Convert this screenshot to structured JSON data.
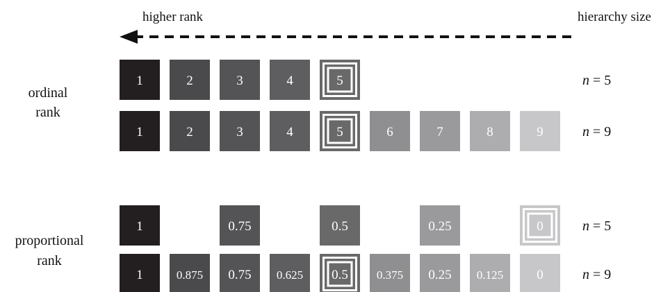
{
  "header": {
    "left_label": "higher rank",
    "right_label": "hierarchy size"
  },
  "sections": [
    {
      "label_lines": [
        "ordinal",
        "rank"
      ],
      "rows": [
        {
          "n_label": "n = 5",
          "cells": [
            {
              "slot": 1,
              "text": "1",
              "color": "#231f20"
            },
            {
              "slot": 2,
              "text": "2",
              "color": "#4a4a4c"
            },
            {
              "slot": 3,
              "text": "3",
              "color": "#545456"
            },
            {
              "slot": 4,
              "text": "4",
              "color": "#5e5e60"
            },
            {
              "slot": 5,
              "text": "5",
              "color": "#696969",
              "highlight": true
            }
          ]
        },
        {
          "n_label": "n = 9",
          "cells": [
            {
              "slot": 1,
              "text": "1",
              "color": "#231f20"
            },
            {
              "slot": 2,
              "text": "2",
              "color": "#4a4a4c"
            },
            {
              "slot": 3,
              "text": "3",
              "color": "#545456"
            },
            {
              "slot": 4,
              "text": "4",
              "color": "#5e5e60"
            },
            {
              "slot": 5,
              "text": "5",
              "color": "#696969",
              "highlight": true
            },
            {
              "slot": 6,
              "text": "6",
              "color": "#8f8f91"
            },
            {
              "slot": 7,
              "text": "7",
              "color": "#9a9a9c"
            },
            {
              "slot": 8,
              "text": "8",
              "color": "#adadaf"
            },
            {
              "slot": 9,
              "text": "9",
              "color": "#c7c7c9"
            }
          ]
        }
      ]
    },
    {
      "label_lines": [
        "proportional",
        "rank"
      ],
      "rows": [
        {
          "n_label": "n = 5",
          "cells": [
            {
              "slot": 1,
              "text": "1",
              "color": "#231f20"
            },
            {
              "slot": 3,
              "text": "0.75",
              "color": "#545456"
            },
            {
              "slot": 5,
              "text": "0.5",
              "color": "#696969"
            },
            {
              "slot": 7,
              "text": "0.25",
              "color": "#9a9a9c"
            },
            {
              "slot": 9,
              "text": "0",
              "color": "#c7c7c9",
              "highlight": true
            }
          ]
        },
        {
          "n_label": "n = 9",
          "cells": [
            {
              "slot": 1,
              "text": "1",
              "color": "#231f20"
            },
            {
              "slot": 2,
              "text": "0.875",
              "color": "#4a4a4c"
            },
            {
              "slot": 3,
              "text": "0.75",
              "color": "#545456"
            },
            {
              "slot": 4,
              "text": "0.625",
              "color": "#5e5e60"
            },
            {
              "slot": 5,
              "text": "0.5",
              "color": "#696969",
              "highlight": true
            },
            {
              "slot": 6,
              "text": "0.375",
              "color": "#8f8f91"
            },
            {
              "slot": 7,
              "text": "0.25",
              "color": "#9a9a9c"
            },
            {
              "slot": 8,
              "text": "0.125",
              "color": "#adadaf"
            },
            {
              "slot": 9,
              "text": "0",
              "color": "#c7c7c9"
            }
          ]
        }
      ]
    }
  ]
}
